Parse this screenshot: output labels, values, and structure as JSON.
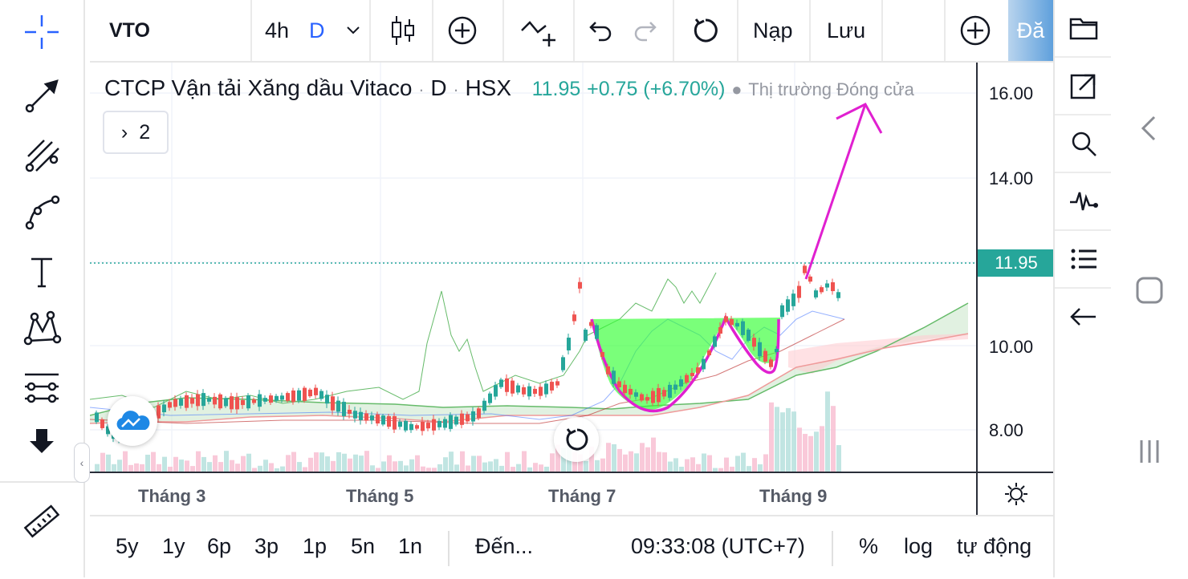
{
  "toolbar": {
    "symbol": "VTO",
    "interval_options": [
      "4h",
      "D"
    ],
    "selected_interval": "D",
    "buttons": {
      "compare": "plus-circle-icon",
      "indicators": "indicators-icon",
      "undo": "undo-icon",
      "redo": "redo-icon",
      "refresh": "refresh-icon"
    },
    "load_label": "Nạp",
    "save_label": "Lưu",
    "add_label": "plus-circle-icon",
    "trade_label": "Đă"
  },
  "left_tools": [
    "crosshair-icon",
    "trend-line-icon",
    "fib-tool-icon",
    "curve-icon",
    "text-icon",
    "pattern-icon",
    "measure-icon",
    "arrow-down-icon",
    "ruler-icon"
  ],
  "legend": {
    "name": "CTCP Vận tải Xăng dầu Vitaco",
    "dot1": "·",
    "interval": "D",
    "dot2": "·",
    "exchange": "HSX",
    "price": "11.95",
    "change": "+0.75 (+6.70%)",
    "market_status": "Thị trường Đóng cửa",
    "indicators_count": "2"
  },
  "price_axis": {
    "labels": [
      "16.00",
      "14.00",
      "10.00",
      "8.00"
    ],
    "last_price": "11.95"
  },
  "time_axis": {
    "labels": [
      "Tháng 3",
      "Tháng 5",
      "Tháng 7",
      "Tháng 9"
    ]
  },
  "bottom_bar": {
    "ranges": [
      "5y",
      "1y",
      "6p",
      "3p",
      "1p",
      "5n",
      "1n"
    ],
    "goto": "Đến...",
    "clock": "09:33:08 (UTC+7)",
    "percent": "%",
    "log": "log",
    "auto": "tự động"
  },
  "right_panel": [
    "folder-icon",
    "external-link-icon",
    "search-icon",
    "pulse-icon",
    "list-icon",
    "arrow-left-icon"
  ],
  "colors": {
    "up": "#26a69a",
    "down": "#ef5350",
    "drawing": "#e020d0",
    "cloud_up": "#c8e6c9",
    "cloud_down": "#ffcdd2",
    "cup_fill": "#33ff33"
  }
}
